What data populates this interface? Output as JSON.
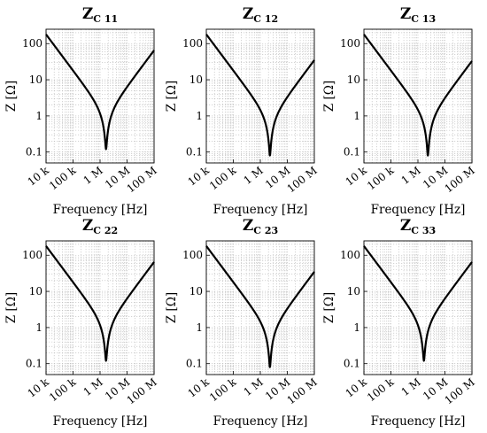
{
  "chart_data": [
    {
      "type": "line",
      "title": "Z",
      "title_subscript": "C 11",
      "xlabel": "Frequency [Hz]",
      "ylabel": "Z [Ω]",
      "xscale": "log",
      "yscale": "log",
      "xlim": [
        10000,
        100000000
      ],
      "ylim": [
        0.05,
        250
      ],
      "xticks": [
        10000,
        100000,
        1000000,
        10000000,
        100000000
      ],
      "xtick_labels": [
        "10 k",
        "100 k",
        "1 M",
        "10 M",
        "100 M"
      ],
      "yticks": [
        0.1,
        1,
        10,
        100
      ],
      "ytick_labels": [
        "0.1",
        "1",
        "10",
        "100"
      ],
      "grid": true,
      "series": [
        {
          "x": [
            10000,
            1600000,
            100000000
          ],
          "y": [
            180,
            0.12,
            65
          ]
        }
      ]
    },
    {
      "type": "line",
      "title": "Z",
      "title_subscript": "C 12",
      "xlabel": "Frequency [Hz]",
      "ylabel": "Z [Ω]",
      "xscale": "log",
      "yscale": "log",
      "xlim": [
        10000,
        100000000
      ],
      "ylim": [
        0.05,
        250
      ],
      "xticks": [
        10000,
        100000,
        1000000,
        10000000,
        100000000
      ],
      "xtick_labels": [
        "10 k",
        "100 k",
        "1 M",
        "10 M",
        "100 M"
      ],
      "yticks": [
        0.1,
        1,
        10,
        100
      ],
      "ytick_labels": [
        "0.1",
        "1",
        "10",
        "100"
      ],
      "grid": true,
      "series": [
        {
          "x": [
            10000,
            2600000,
            100000000
          ],
          "y": [
            180,
            0.08,
            35
          ]
        }
      ]
    },
    {
      "type": "line",
      "title": "Z",
      "title_subscript": "C 13",
      "xlabel": "Frequency [Hz]",
      "ylabel": "Z [Ω]",
      "xscale": "log",
      "yscale": "log",
      "xlim": [
        10000,
        100000000
      ],
      "ylim": [
        0.05,
        250
      ],
      "xticks": [
        10000,
        100000,
        1000000,
        10000000,
        100000000
      ],
      "xtick_labels": [
        "10 k",
        "100 k",
        "1 M",
        "10 M",
        "100 M"
      ],
      "yticks": [
        0.1,
        1,
        10,
        100
      ],
      "ytick_labels": [
        "0.1",
        "1",
        "10",
        "100"
      ],
      "grid": true,
      "series": [
        {
          "x": [
            10000,
            2600000,
            100000000
          ],
          "y": [
            180,
            0.08,
            33
          ]
        }
      ]
    },
    {
      "type": "line",
      "title": "Z",
      "title_subscript": "C 22",
      "xlabel": "Frequency [Hz]",
      "ylabel": "Z [Ω]",
      "xscale": "log",
      "yscale": "log",
      "xlim": [
        10000,
        100000000
      ],
      "ylim": [
        0.05,
        250
      ],
      "xticks": [
        10000,
        100000,
        1000000,
        10000000,
        100000000
      ],
      "xtick_labels": [
        "10 k",
        "100 k",
        "1 M",
        "10 M",
        "100 M"
      ],
      "yticks": [
        0.1,
        1,
        10,
        100
      ],
      "ytick_labels": [
        "0.1",
        "1",
        "10",
        "100"
      ],
      "grid": true,
      "series": [
        {
          "x": [
            10000,
            1600000,
            100000000
          ],
          "y": [
            180,
            0.12,
            65
          ]
        }
      ]
    },
    {
      "type": "line",
      "title": "Z",
      "title_subscript": "C 23",
      "xlabel": "Frequency [Hz]",
      "ylabel": "Z [Ω]",
      "xscale": "log",
      "yscale": "log",
      "xlim": [
        10000,
        100000000
      ],
      "ylim": [
        0.05,
        250
      ],
      "xticks": [
        10000,
        100000,
        1000000,
        10000000,
        100000000
      ],
      "xtick_labels": [
        "10 k",
        "100 k",
        "1 M",
        "10 M",
        "100 M"
      ],
      "yticks": [
        0.1,
        1,
        10,
        100
      ],
      "ytick_labels": [
        "0.1",
        "1",
        "10",
        "100"
      ],
      "grid": true,
      "series": [
        {
          "x": [
            10000,
            2600000,
            100000000
          ],
          "y": [
            180,
            0.08,
            35
          ]
        }
      ]
    },
    {
      "type": "line",
      "title": "Z",
      "title_subscript": "C 33",
      "xlabel": "Frequency [Hz]",
      "ylabel": "Z [Ω]",
      "xscale": "log",
      "yscale": "log",
      "xlim": [
        10000,
        100000000
      ],
      "ylim": [
        0.05,
        250
      ],
      "xticks": [
        10000,
        100000,
        1000000,
        10000000,
        100000000
      ],
      "xtick_labels": [
        "10 k",
        "100 k",
        "1 M",
        "10 M",
        "100 M"
      ],
      "yticks": [
        0.1,
        1,
        10,
        100
      ],
      "ytick_labels": [
        "0.1",
        "1",
        "10",
        "100"
      ],
      "grid": true,
      "series": [
        {
          "x": [
            10000,
            1600000,
            100000000
          ],
          "y": [
            180,
            0.12,
            65
          ]
        }
      ]
    }
  ]
}
